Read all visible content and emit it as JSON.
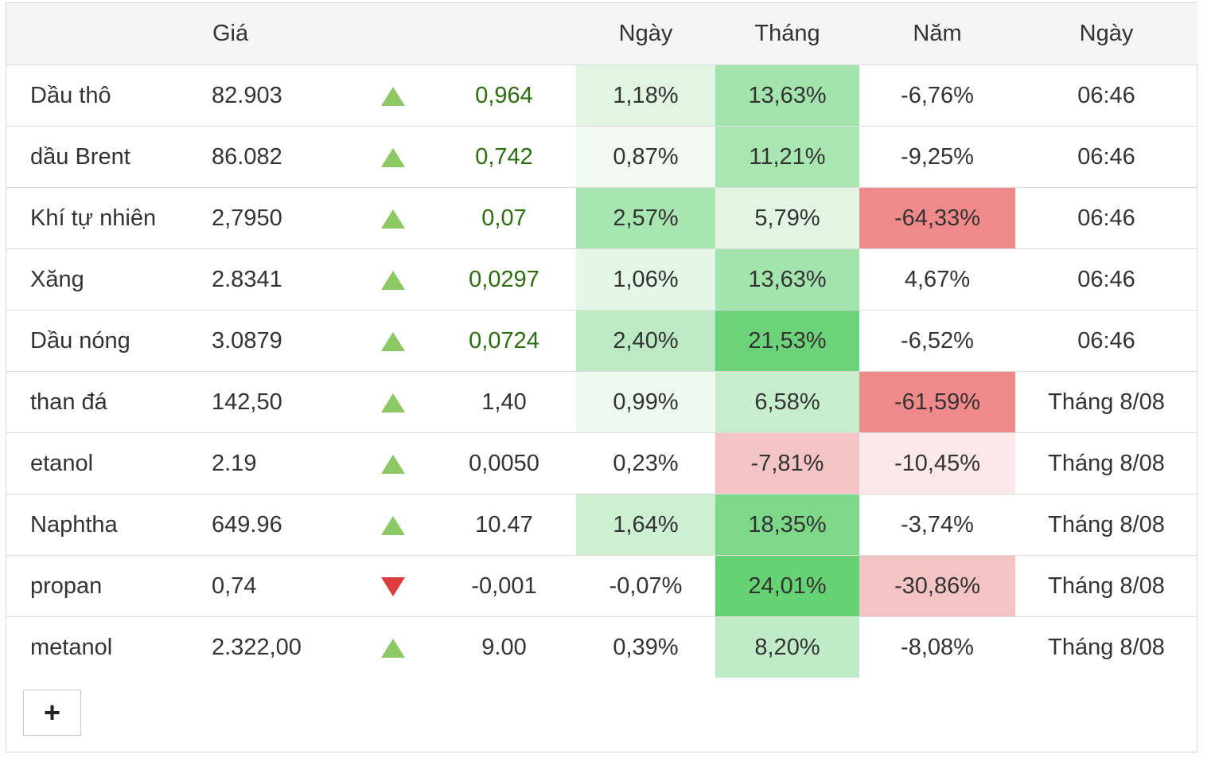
{
  "headers": {
    "name": "",
    "price": "Giá",
    "arrow": "",
    "change": "",
    "day": "Ngày",
    "month": "Tháng",
    "year": "Năm",
    "time": "Ngày"
  },
  "rows": [
    {
      "name": "Dầu thô",
      "price": "82.903",
      "direction": "up",
      "change": "0,964",
      "change_color": "green",
      "day": "1,18%",
      "day_bg": "#e1f5e2",
      "month": "13,63%",
      "month_bg": "#a3e4ad",
      "year": "-6,76%",
      "year_bg": "",
      "time": "06:46"
    },
    {
      "name": "dầu Brent",
      "price": "86.082",
      "direction": "up",
      "change": "0,742",
      "change_color": "green",
      "day": "0,87%",
      "day_bg": "#f0faf0",
      "month": "11,21%",
      "month_bg": "#a9e6b2",
      "year": "-9,25%",
      "year_bg": "",
      "time": "06:46"
    },
    {
      "name": "Khí tự nhiên",
      "price": "2,7950",
      "direction": "up",
      "change": "0,07",
      "change_color": "green",
      "day": "2,57%",
      "day_bg": "#a8e6b1",
      "month": "5,79%",
      "month_bg": "#e1f5e2",
      "year": "-64,33%",
      "year_bg": "#f08a8a",
      "time": "06:46"
    },
    {
      "name": "Xăng",
      "price": "2.8341",
      "direction": "up",
      "change": "0,0297",
      "change_color": "green",
      "day": "1,06%",
      "day_bg": "#e4f6e5",
      "month": "13,63%",
      "month_bg": "#a3e4ad",
      "year": "4,67%",
      "year_bg": "",
      "time": "06:46"
    },
    {
      "name": "Dầu nóng",
      "price": "3.0879",
      "direction": "up",
      "change": "0,0724",
      "change_color": "green",
      "day": "2,40%",
      "day_bg": "#bceac3",
      "month": "21,53%",
      "month_bg": "#6dd37b",
      "year": "-6,52%",
      "year_bg": "",
      "time": "06:46"
    },
    {
      "name": "than đá",
      "price": "142,50",
      "direction": "up",
      "change": "1,40",
      "change_color": "dark",
      "day": "0,99%",
      "day_bg": "#eef9ef",
      "month": "6,58%",
      "month_bg": "#c6eecc",
      "year": "-61,59%",
      "year_bg": "#f08a8a",
      "time": "Tháng 8/08"
    },
    {
      "name": "etanol",
      "price": "2.19",
      "direction": "up",
      "change": "0,0050",
      "change_color": "dark",
      "day": "0,23%",
      "day_bg": "",
      "month": "-7,81%",
      "month_bg": "#f4c4c4",
      "year": "-10,45%",
      "year_bg": "#fbe8e8",
      "time": "Tháng 8/08"
    },
    {
      "name": "Naphtha",
      "price": "649.96",
      "direction": "up",
      "change": "10.47",
      "change_color": "dark",
      "day": "1,64%",
      "day_bg": "#cdefd2",
      "month": "18,35%",
      "month_bg": "#7ed88a",
      "year": "-3,74%",
      "year_bg": "",
      "time": "Tháng 8/08"
    },
    {
      "name": "propan",
      "price": "0,74",
      "direction": "down",
      "change": "-0,001",
      "change_color": "dark",
      "day": "-0,07%",
      "day_bg": "",
      "month": "24,01%",
      "month_bg": "#65d274",
      "year": "-30,86%",
      "year_bg": "#f4c4c4",
      "time": "Tháng 8/08"
    },
    {
      "name": "metanol",
      "price": "2.322,00",
      "direction": "up",
      "change": "9.00",
      "change_color": "dark",
      "day": "0,39%",
      "day_bg": "",
      "month": "8,20%",
      "month_bg": "#bfecc6",
      "year": "-8,08%",
      "year_bg": "",
      "time": "Tháng 8/08"
    }
  ],
  "add_button": {
    "label": "+"
  }
}
